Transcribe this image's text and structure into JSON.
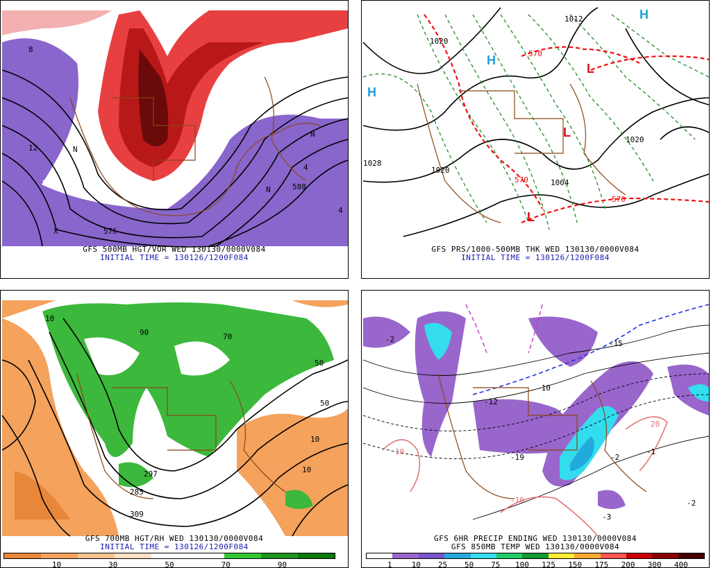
{
  "panels": [
    {
      "id": "tl",
      "caption1": "GFS 500MB HGT/VOR WED 130130/0000V084",
      "caption2": "INITIAL TIME = 130126/1200F084",
      "labels": [
        "588",
        "576",
        "12",
        "4",
        "8",
        "N",
        "X",
        "N",
        "N",
        "4"
      ]
    },
    {
      "id": "tr",
      "caption1": "GFS PRS/1000-500MB THK WED 130130/0000V084",
      "caption2": "INITIAL TIME = 130126/1200F084",
      "labels": [
        "1028",
        "1020",
        "1012",
        "1004",
        "1020",
        "1020",
        "570",
        "570",
        "570"
      ],
      "symbols": [
        "H",
        "H",
        "H",
        "L",
        "L",
        "L"
      ]
    },
    {
      "id": "bl",
      "caption1": "GFS 700MB HGT/RH WED 130130/0000V084",
      "caption2": "INITIAL TIME = 130126/1200F084",
      "labels": [
        "309",
        "297",
        "285",
        "10",
        "50",
        "90",
        "70",
        "10",
        "50",
        "10"
      ]
    },
    {
      "id": "br",
      "caption1": "GFS 6HR PRECIP ENDING WED 130130/0000V084",
      "caption2": "GFS 850MB TEMP WED 130130/0000V084",
      "labels": [
        "-2",
        "-12",
        "-19",
        "-15",
        "-10",
        "10",
        "-10",
        "20",
        "-2",
        "-2",
        "-3",
        "-1"
      ]
    }
  ],
  "colorbar_left": {
    "colors": [
      "#e8863a",
      "#f4a25c",
      "#f8c38f",
      "#fbe0c4",
      "#ffffff",
      "#ffffff",
      "#32c832",
      "#1e961e",
      "#0a780a"
    ],
    "ticks": [
      "10",
      "30",
      "50",
      "70",
      "90"
    ]
  },
  "colorbar_right": {
    "colors": [
      "#ffffff",
      "#9966cc",
      "#7755cc",
      "#22aadd",
      "#33ddee",
      "#22cc66",
      "#119933",
      "#ffee33",
      "#ffaa33",
      "#ff5555",
      "#cc0000",
      "#880000",
      "#440000"
    ],
    "ticks": [
      "1",
      "10",
      "25",
      "50",
      "75",
      "100",
      "125",
      "150",
      "175",
      "200",
      "300",
      "400"
    ]
  }
}
